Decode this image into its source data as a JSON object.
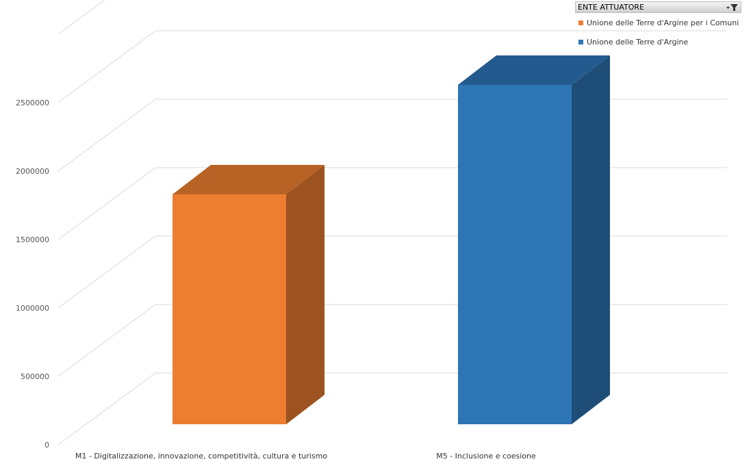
{
  "legend": {
    "title": "ENTE ATTUATORE",
    "filter_icon": "filter-dropdown-icon",
    "items": [
      {
        "label": "Unione delle Terre d'Argine per i Comuni",
        "color": "#ED7D31"
      },
      {
        "label": "Unione delle Terre d'Argine",
        "color": "#2E75B6"
      }
    ]
  },
  "chart_data": {
    "type": "bar",
    "style": "3d-column",
    "categories": [
      "M1 - Digitalizzazione, innovazione, competitività, cultura e turismo",
      "M5 - Inclusione e coesione"
    ],
    "series": [
      {
        "name": "Unione delle Terre d'Argine per i Comuni",
        "values": [
          1680000,
          null
        ],
        "color": "#ED7D31"
      },
      {
        "name": "Unione delle Terre d'Argine",
        "values": [
          null,
          2480000
        ],
        "color": "#2E75B6"
      }
    ],
    "ylim": [
      0,
      3000000
    ],
    "yticks": [
      0,
      500000,
      1000000,
      1500000,
      2000000,
      2500000
    ],
    "ytick_labels": [
      "0",
      "500000",
      "1000000",
      "1500000",
      "2000000",
      "2500000"
    ],
    "grid": true,
    "legend_position": "top-right"
  }
}
